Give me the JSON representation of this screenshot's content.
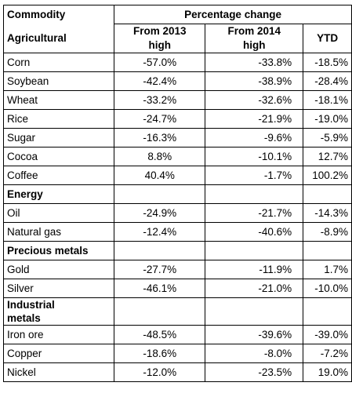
{
  "header": {
    "commodity": "Commodity",
    "percentage_change": "Percentage change",
    "category_agricultural": "Agricultural",
    "col_2013_line1": "From 2013",
    "col_2013_line2": "high",
    "col_2014_line1": "From 2014",
    "col_2014_line2": "high",
    "col_ytd": "YTD"
  },
  "agricultural": [
    {
      "name": "Corn",
      "from2013": "-57.0%",
      "from2014": "-33.8%",
      "ytd": "-18.5%"
    },
    {
      "name": "Soybean",
      "from2013": "-42.4%",
      "from2014": "-38.9%",
      "ytd": "-28.4%"
    },
    {
      "name": "Wheat",
      "from2013": "-33.2%",
      "from2014": "-32.6%",
      "ytd": "-18.1%"
    },
    {
      "name": "Rice",
      "from2013": "-24.7%",
      "from2014": "-21.9%",
      "ytd": "-19.0%"
    },
    {
      "name": "Sugar",
      "from2013": "-16.3%",
      "from2014": "-9.6%",
      "ytd": "-5.9%"
    },
    {
      "name": "Cocoa",
      "from2013": "8.8%",
      "from2014": "-10.1%",
      "ytd": "12.7%"
    },
    {
      "name": "Coffee",
      "from2013": "40.4%",
      "from2014": "-1.7%",
      "ytd": "100.2%"
    }
  ],
  "energy": {
    "label": "Energy",
    "rows": [
      {
        "name": "Oil",
        "from2013": "-24.9%",
        "from2014": "-21.7%",
        "ytd": "-14.3%"
      },
      {
        "name": "Natural gas",
        "from2013": "-12.4%",
        "from2014": "-40.6%",
        "ytd": "-8.9%"
      }
    ]
  },
  "precious": {
    "label": "Precious metals",
    "rows": [
      {
        "name": "Gold",
        "from2013": "-27.7%",
        "from2014": "-11.9%",
        "ytd": "1.7%"
      },
      {
        "name": "Silver",
        "from2013": "-46.1%",
        "from2014": "-21.0%",
        "ytd": "-10.0%"
      }
    ]
  },
  "industrial": {
    "label_line1": "Industrial",
    "label_line2": "metals",
    "rows": [
      {
        "name": "Iron ore",
        "from2013": "-48.5%",
        "from2014": "-39.6%",
        "ytd": "-39.0%"
      },
      {
        "name": "Copper",
        "from2013": "-18.6%",
        "from2014": "-8.0%",
        "ytd": "-7.2%"
      },
      {
        "name": "Nickel",
        "from2013": "-12.0%",
        "from2014": "-23.5%",
        "ytd": "19.0%"
      }
    ]
  }
}
